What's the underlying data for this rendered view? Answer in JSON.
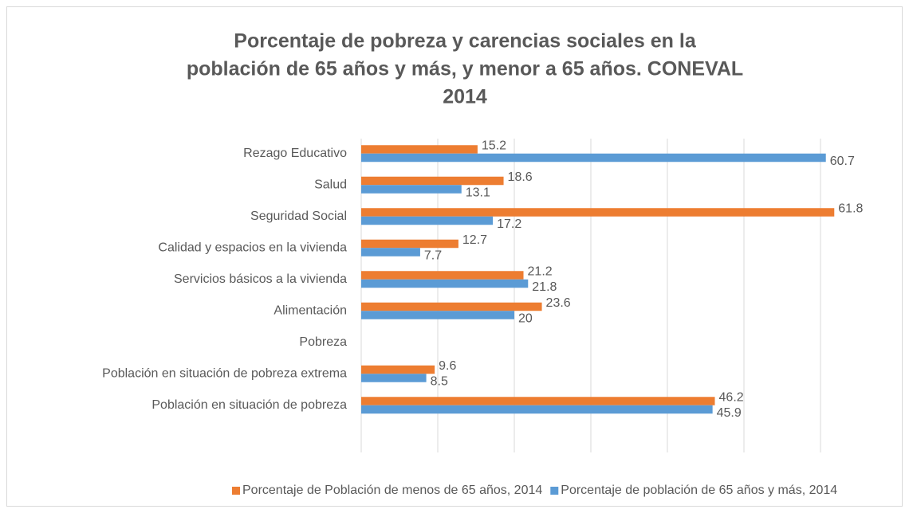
{
  "chart_data": {
    "type": "hbar",
    "title": [
      "Porcentaje de pobreza y carencias sociales en la",
      "población de 65 años y más, y menor a 65 años. CONEVAL",
      "2014"
    ],
    "categories": [
      "Rezago Educativo",
      "Salud",
      "Seguridad Social",
      "Calidad y espacios en la vivienda",
      "Servicios básicos a la vivienda",
      "Alimentación",
      "Pobreza",
      "Población en situación de pobreza extrema",
      "Población en situación de pobreza"
    ],
    "series": [
      {
        "name": "Porcentaje de Población de menos de 65 años, 2014",
        "color": "#ed7d31",
        "values": [
          15.2,
          18.6,
          61.8,
          12.7,
          21.2,
          23.6,
          null,
          9.6,
          46.2
        ]
      },
      {
        "name": "Porcentaje de población de 65 años y más, 2014",
        "color": "#5b9bd5",
        "values": [
          60.7,
          13.1,
          17.2,
          7.7,
          21.8,
          20,
          null,
          8.5,
          45.9
        ]
      }
    ],
    "xlim": [
      0,
      70
    ],
    "xticks": [
      0,
      10,
      20,
      30,
      40,
      50,
      60
    ],
    "grid": true,
    "legend": "bottom"
  }
}
